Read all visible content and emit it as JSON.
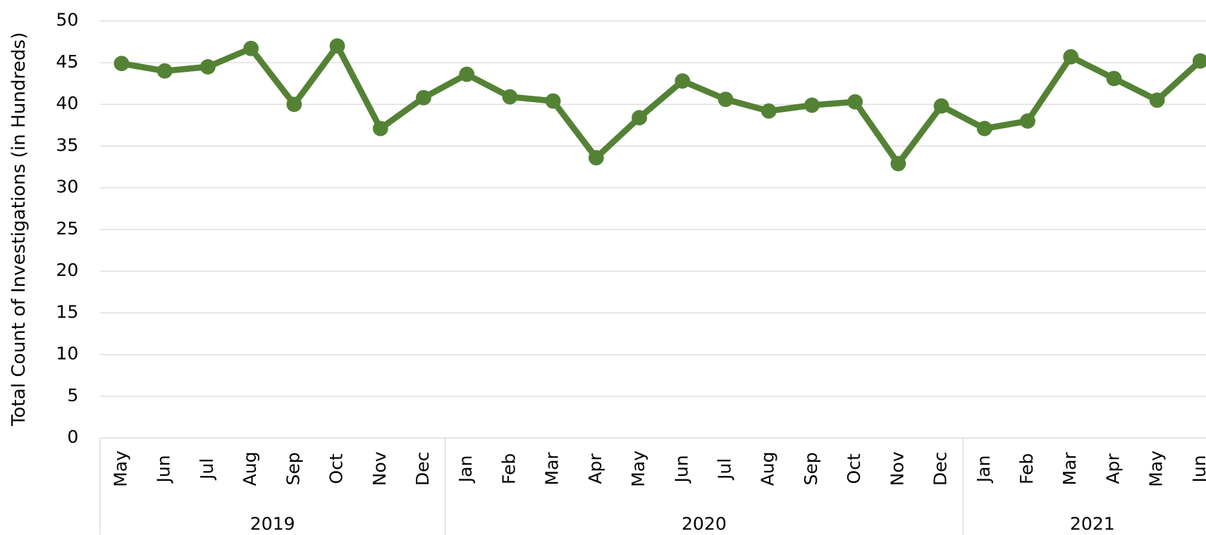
{
  "chart_data": {
    "type": "line",
    "y_label": "Total Count of  Investigations (in Hundreds)",
    "groups": [
      {
        "label": "2019",
        "categories": [
          "May",
          "Jun",
          "Jul",
          "Aug",
          "Sep",
          "Oct",
          "Nov",
          "Dec"
        ]
      },
      {
        "label": "2020",
        "categories": [
          "Jan",
          "Feb",
          "Mar",
          "Apr",
          "May",
          "Jun",
          "Jul",
          "Aug",
          "Sep",
          "Oct",
          "Nov",
          "Dec"
        ]
      },
      {
        "label": "2021",
        "categories": [
          "Jan",
          "Feb",
          "Mar",
          "Apr",
          "May",
          "Jun"
        ]
      }
    ],
    "series": [
      {
        "color": "#548235",
        "values": [
          44.9,
          44.0,
          44.5,
          46.7,
          40.0,
          47.0,
          37.1,
          40.8,
          43.6,
          40.9,
          40.4,
          33.6,
          38.4,
          42.8,
          40.6,
          39.2,
          39.9,
          40.3,
          32.9,
          39.8,
          37.1,
          38.0,
          45.7,
          43.1,
          40.5,
          45.2
        ]
      }
    ],
    "ylim": [
      0,
      50
    ],
    "yticks": [
      0,
      5,
      10,
      15,
      20,
      25,
      30,
      35,
      40,
      45,
      50
    ],
    "grid": true
  }
}
